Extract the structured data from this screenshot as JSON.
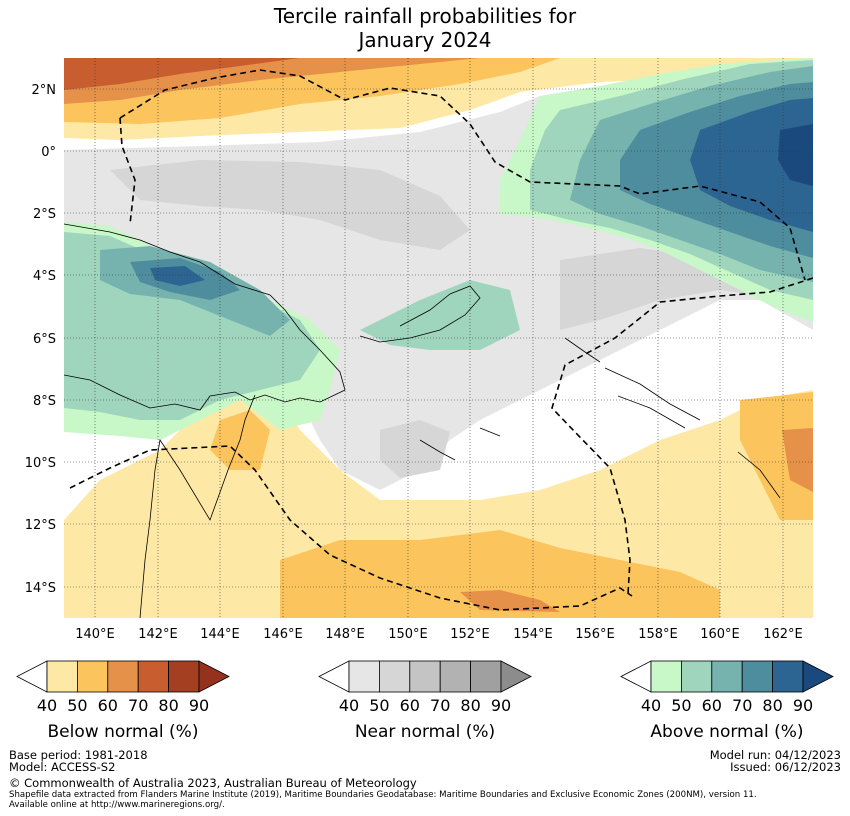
{
  "title": {
    "line1": "Tercile rainfall probabilities for",
    "line2": "January 2024"
  },
  "map": {
    "lat_labels": [
      "2°N",
      "0°",
      "2°S",
      "4°S",
      "6°S",
      "8°S",
      "10°S",
      "12°S",
      "14°S"
    ],
    "lon_labels": [
      "140°E",
      "142°E",
      "144°E",
      "146°E",
      "148°E",
      "150°E",
      "152°E",
      "154°E",
      "156°E",
      "158°E",
      "160°E",
      "162°E"
    ],
    "extent": {
      "lon": [
        139,
        163
      ],
      "lat": [
        -15,
        3
      ]
    },
    "grid": "dotted",
    "colors": {
      "below": "#fcc45d",
      "near": "#d6d6d6",
      "above": "#9fd5bd",
      "strong_above": "#1f5a8c"
    }
  },
  "legend": [
    {
      "title": "Below normal (%)",
      "ticks": [
        "40",
        "50",
        "60",
        "70",
        "80",
        "90"
      ],
      "colors": [
        "#ffffff",
        "#fde9a5",
        "#fcc45d",
        "#e5914a",
        "#c85e30",
        "#a53f22",
        "#94321d"
      ]
    },
    {
      "title": "Near normal (%)",
      "ticks": [
        "40",
        "50",
        "60",
        "70",
        "80",
        "90"
      ],
      "colors": [
        "#ffffff",
        "#e6e6e6",
        "#d6d6d6",
        "#c4c4c4",
        "#b2b2b2",
        "#a0a0a0",
        "#8c8c8c"
      ]
    },
    {
      "title": "Above normal (%)",
      "ticks": [
        "40",
        "50",
        "60",
        "70",
        "80",
        "90"
      ],
      "colors": [
        "#ffffff",
        "#c8f7c8",
        "#9fd5bd",
        "#76b3ae",
        "#4d8d9e",
        "#2d6592",
        "#1a4a7d"
      ]
    }
  ],
  "footer": {
    "base_period": "Base period: 1981-2018",
    "model": "Model: ACCESS-S2",
    "model_run": "Model run: 04/12/2023",
    "issued": "Issued: 06/12/2023",
    "copyright": "© Commonwealth of Australia 2023, Australian Bureau of Meteorology",
    "shapefile_1": "Shapefile data extracted from Flanders Marine Institute (2019), Maritime Boundaries Geodatabase: Maritime Boundaries and Exclusive Economic Zones (200NM), version 11.",
    "shapefile_2": "Available online at http://www.marineregions.org/."
  }
}
